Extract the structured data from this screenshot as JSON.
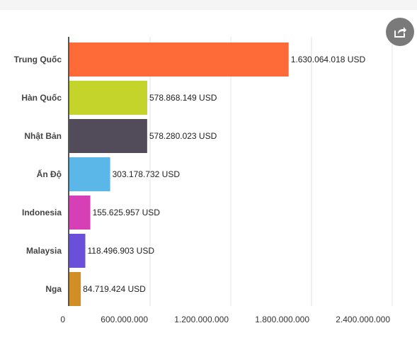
{
  "share_icon": "share-icon",
  "chart_data": {
    "type": "bar",
    "orientation": "horizontal",
    "categories": [
      "Trung Quốc",
      "Hàn Quốc",
      "Nhật Bản",
      "Ấn Độ",
      "Indonesia",
      "Malaysia",
      "Nga"
    ],
    "values": [
      1630064018,
      578868149,
      578280023,
      303178732,
      155625957,
      118496903,
      84719424
    ],
    "data_labels": [
      "1.630.064.018 USD",
      "578.868.149 USD",
      "578.280.023 USD",
      "303.178.732 USD",
      "155.625.957 USD",
      "118.496.903 USD",
      "84.719.424 USD"
    ],
    "colors": [
      "#ff6a39",
      "#c4d42a",
      "#524c5a",
      "#5ab7e8",
      "#d63fb5",
      "#6a4fd8",
      "#d18e24"
    ],
    "x_ticks": [
      0,
      600000000,
      1200000000,
      1800000000,
      2400000000
    ],
    "x_tick_labels": [
      "0",
      "600.000.000",
      "1.200.000.000",
      "1.800.000.000",
      "2.400.000.000"
    ],
    "xlim": [
      0,
      2400000000
    ],
    "grid": true,
    "legend": "none",
    "title": "",
    "xlabel": "",
    "ylabel": ""
  }
}
